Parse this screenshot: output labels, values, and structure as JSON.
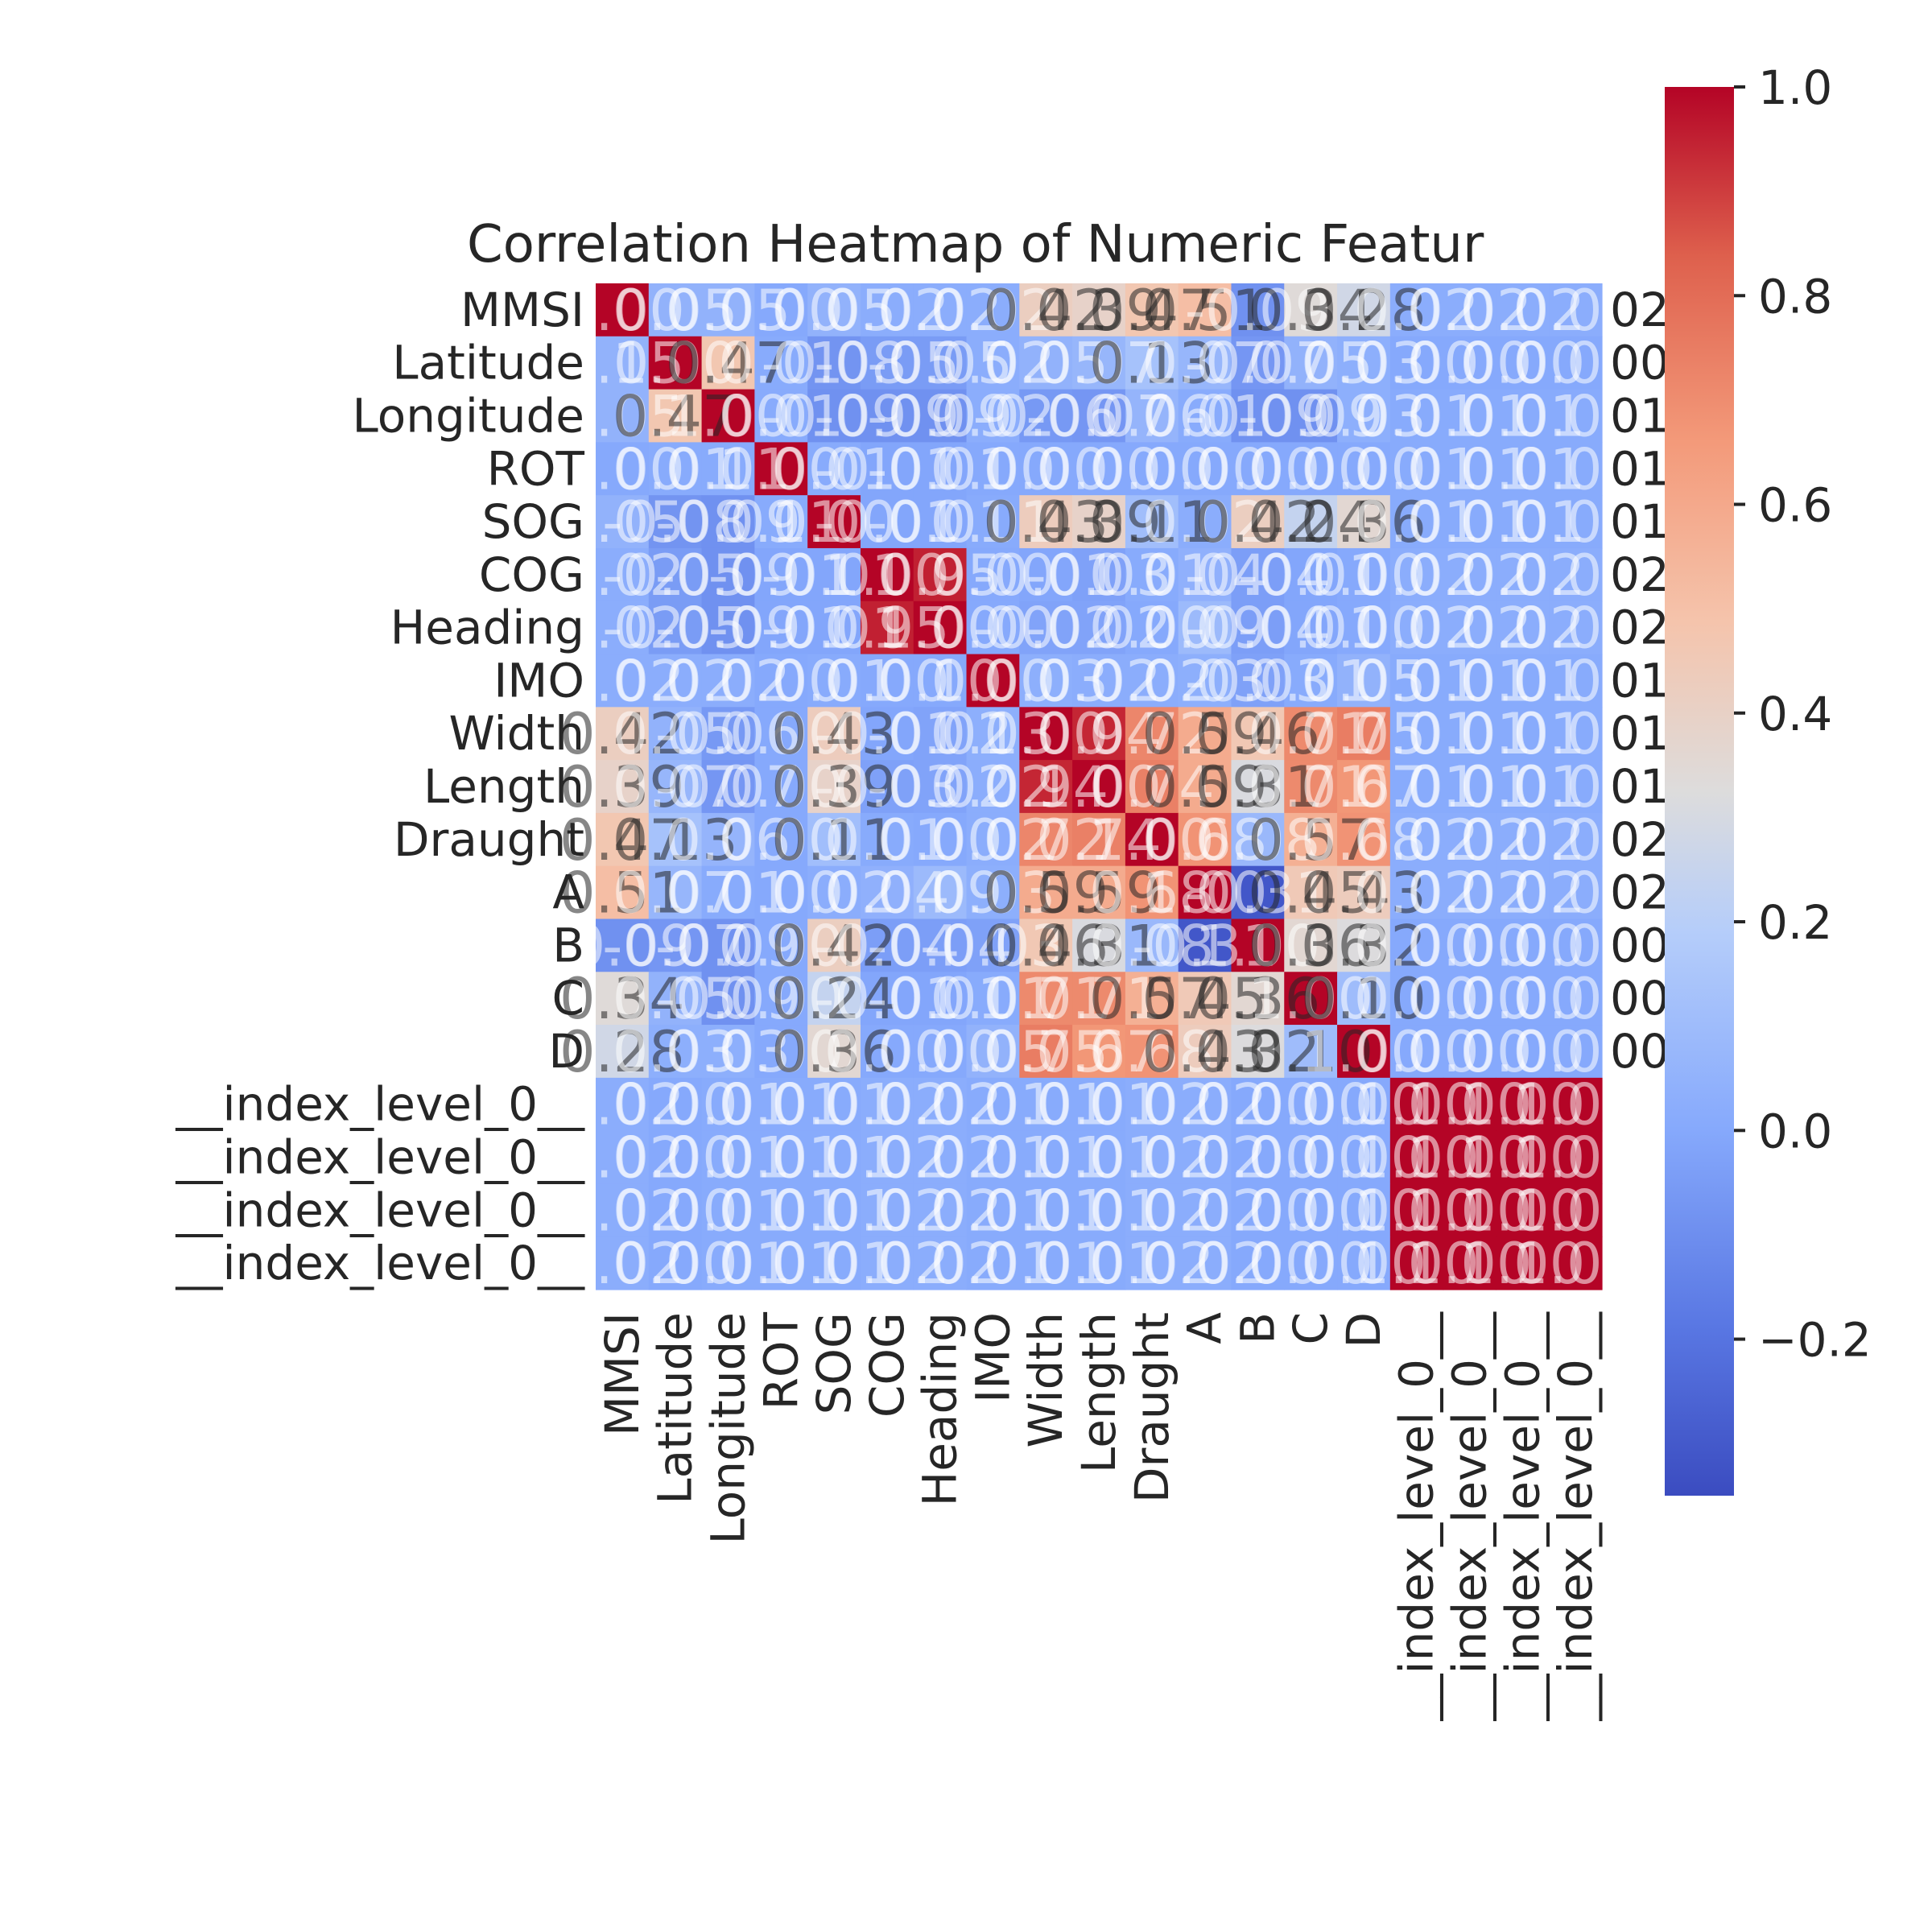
{
  "chart_data": {
    "type": "heatmap",
    "title": "Correlation Heatmap of Numeric Featur",
    "row_labels": [
      "MMSI",
      "Latitude",
      "Longitude",
      "ROT",
      "SOG",
      "COG",
      "Heading",
      "IMO",
      "Width",
      "Length",
      "Draught",
      "A",
      "B",
      "C",
      "D",
      "__index_level_0__",
      "__index_level_0__",
      "__index_level_0__",
      "__index_level_0__"
    ],
    "col_labels": [
      "MMSI",
      "Latitude",
      "Longitude",
      "ROT",
      "SOG",
      "COG",
      "Heading",
      "IMO",
      "Width",
      "Length",
      "Draught",
      "A",
      "B",
      "C",
      "D",
      "__index_level_0__",
      "__index_level_0__",
      "__index_level_0__",
      "__index_level_0__"
    ],
    "row_trailing_labels": [
      "02",
      "00",
      "01",
      "01",
      "01",
      "02",
      "02",
      "01",
      "01",
      "01",
      "02",
      "02",
      "00",
      "00",
      "00",
      "",
      "",
      "",
      ""
    ],
    "matrix": [
      [
        1.0,
        0.05,
        0.05,
        0.0,
        0.05,
        0.02,
        0.02,
        0.02,
        0.42,
        0.39,
        0.47,
        0.51,
        -0.09,
        0.34,
        0.28,
        0.02,
        0.02,
        0.02,
        0.02
      ],
      [
        0.05,
        1.0,
        0.47,
        0.01,
        -0.08,
        -0.05,
        -0.05,
        0.02,
        0.05,
        0.07,
        0.13,
        0.07,
        -0.07,
        0.05,
        0.03,
        0.0,
        0.0,
        0.0,
        0.0
      ],
      [
        0.05,
        0.47,
        1.0,
        0.01,
        -0.09,
        -0.09,
        -0.09,
        0.02,
        -0.06,
        -0.07,
        0.06,
        0.01,
        -0.09,
        -0.09,
        0.03,
        0.01,
        0.01,
        0.01,
        0.01
      ],
      [
        0.0,
        0.01,
        0.01,
        1.0,
        0.01,
        -0.01,
        -0.01,
        0.0,
        0.0,
        0.0,
        0.0,
        0.0,
        0.0,
        0.0,
        0.0,
        0.01,
        0.01,
        0.01,
        0.01
      ],
      [
        0.05,
        -0.08,
        -0.09,
        0.01,
        1.0,
        -0.01,
        -0.01,
        0.01,
        0.43,
        0.39,
        0.11,
        0.02,
        0.42,
        0.24,
        0.36,
        0.01,
        0.01,
        0.01,
        0.01
      ],
      [
        0.02,
        -0.05,
        -0.09,
        -0.01,
        -0.01,
        1.0,
        0.95,
        0.0,
        -0.01,
        -0.03,
        0.01,
        0.04,
        -0.04,
        -0.01,
        0.0,
        0.02,
        0.02,
        0.02,
        0.02
      ],
      [
        0.02,
        -0.05,
        -0.09,
        -0.01,
        -0.01,
        0.95,
        1.0,
        0.0,
        -0.02,
        -0.02,
        0.0,
        0.09,
        -0.04,
        -0.01,
        0.0,
        0.02,
        0.02,
        0.02,
        0.02
      ],
      [
        0.02,
        0.02,
        0.02,
        0.0,
        0.01,
        0.0,
        0.0,
        1.0,
        0.03,
        0.02,
        0.02,
        0.03,
        -0.03,
        0.01,
        0.05,
        0.01,
        0.01,
        0.01,
        0.01
      ],
      [
        0.42,
        0.05,
        -0.06,
        0.0,
        0.43,
        -0.01,
        -0.02,
        0.03,
        1.0,
        0.94,
        0.72,
        0.59,
        0.46,
        0.71,
        0.75,
        0.01,
        0.01,
        0.01,
        0.01
      ],
      [
        0.39,
        0.07,
        -0.07,
        0.0,
        0.39,
        -0.03,
        -0.02,
        0.02,
        0.94,
        1.0,
        0.74,
        0.59,
        0.31,
        0.71,
        0.67,
        0.01,
        0.01,
        0.01,
        0.01
      ],
      [
        0.47,
        0.13,
        0.06,
        0.0,
        0.11,
        0.01,
        0.0,
        0.02,
        0.72,
        0.74,
        1.0,
        0.68,
        0.08,
        0.57,
        0.68,
        0.02,
        0.02,
        0.02,
        0.02
      ],
      [
        0.51,
        0.07,
        0.01,
        0.0,
        0.02,
        0.04,
        0.09,
        0.03,
        0.59,
        0.59,
        0.68,
        1.0,
        -0.31,
        0.45,
        0.43,
        0.02,
        0.02,
        0.02,
        0.02
      ],
      [
        -0.09,
        -0.07,
        -0.09,
        0.0,
        0.42,
        -0.04,
        -0.04,
        -0.03,
        0.46,
        0.31,
        0.08,
        -0.31,
        1.0,
        0.36,
        0.32,
        0.0,
        0.0,
        0.0,
        0.0
      ],
      [
        0.34,
        0.05,
        -0.09,
        0.0,
        0.24,
        -0.01,
        -0.01,
        0.01,
        0.71,
        0.71,
        0.57,
        0.45,
        0.36,
        1.0,
        0.1,
        0.0,
        0.0,
        0.0,
        0.0
      ],
      [
        0.28,
        0.03,
        0.03,
        0.0,
        0.36,
        0.0,
        0.0,
        0.05,
        0.75,
        0.67,
        0.68,
        0.43,
        0.32,
        0.1,
        1.0,
        0.0,
        0.0,
        0.0,
        0.0
      ],
      [
        0.02,
        0.0,
        0.01,
        0.01,
        0.01,
        0.02,
        0.02,
        0.01,
        0.01,
        0.01,
        0.02,
        0.02,
        0.0,
        0.0,
        0.0,
        1.0,
        1.0,
        1.0,
        1.0
      ],
      [
        0.02,
        0.0,
        0.01,
        0.01,
        0.01,
        0.02,
        0.02,
        0.01,
        0.01,
        0.01,
        0.02,
        0.02,
        0.0,
        0.0,
        0.0,
        1.0,
        1.0,
        1.0,
        1.0
      ],
      [
        0.02,
        0.0,
        0.01,
        0.01,
        0.01,
        0.02,
        0.02,
        0.01,
        0.01,
        0.01,
        0.02,
        0.02,
        0.0,
        0.0,
        0.0,
        1.0,
        1.0,
        1.0,
        1.0
      ],
      [
        0.02,
        0.0,
        0.01,
        0.01,
        0.01,
        0.02,
        0.02,
        0.01,
        0.01,
        0.01,
        0.02,
        0.02,
        0.0,
        0.0,
        0.0,
        1.0,
        1.0,
        1.0,
        1.0
      ]
    ],
    "colormap": "coolwarm",
    "vmin": -0.35,
    "vmax": 1.0,
    "colorbar_ticks": [
      "1.0",
      "0.8",
      "0.6",
      "0.4",
      "0.2",
      "0.0",
      "−0.2"
    ],
    "colorbar_tick_values": [
      1.0,
      0.8,
      0.6,
      0.4,
      0.2,
      0.0,
      -0.2
    ],
    "annotations": true,
    "annotation_format": "2 decimals",
    "grid": false
  }
}
